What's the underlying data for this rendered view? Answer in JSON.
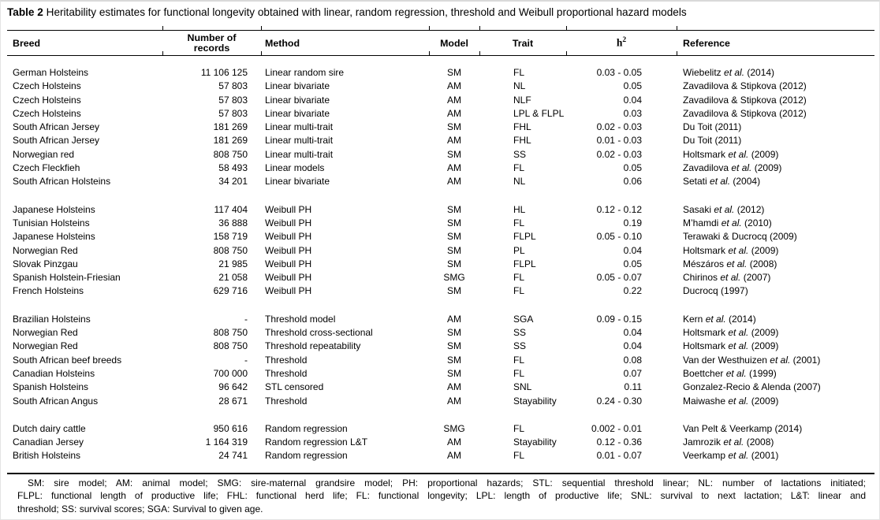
{
  "title": {
    "bold": "Table 2",
    "rest": " Heritability estimates for functional longevity obtained with linear, random regression, threshold and Weibull proportional hazard models"
  },
  "table": {
    "headers": {
      "breed": "Breed",
      "records_line1": "Number of",
      "records_line2": "records",
      "method": "Method",
      "model": "Model",
      "trait": "Trait",
      "h2_base": "h",
      "h2_sup": "2",
      "reference": "Reference"
    },
    "groups": [
      {
        "rows": [
          {
            "breed": "German Holsteins",
            "records": "11 106 125",
            "method": "Linear random sire",
            "model": "SM",
            "trait": "FL",
            "h2": "0.03 - 0.05",
            "reference": [
              "Wiebelitz ",
              "et al.",
              " (2014)"
            ]
          },
          {
            "breed": "Czech Holsteins",
            "records": "57 803",
            "method": "Linear bivariate",
            "model": "AM",
            "trait": "NL",
            "h2": "0.05",
            "reference": [
              "Zavadilova & Stipkova (2012)"
            ]
          },
          {
            "breed": "Czech Holsteins",
            "records": "57 803",
            "method": "Linear bivariate",
            "model": "AM",
            "trait": "NLF",
            "h2": "0.04",
            "reference": [
              "Zavadilova & Stipkova (2012)"
            ]
          },
          {
            "breed": "Czech Holsteins",
            "records": "57 803",
            "method": "Linear bivariate",
            "model": "AM",
            "trait": "LPL & FLPL",
            "h2": "0.03",
            "reference": [
              "Zavadilova & Stipkova (2012)"
            ]
          },
          {
            "breed": "South African Jersey",
            "records": "181 269",
            "method": "Linear multi-trait",
            "model": "SM",
            "trait": "FHL",
            "h2": "0.02 - 0.03",
            "reference": [
              "Du Toit (2011)"
            ]
          },
          {
            "breed": "South African Jersey",
            "records": "181 269",
            "method": "Linear multi-trait",
            "model": "AM",
            "trait": "FHL",
            "h2": "0.01 - 0.03",
            "reference": [
              "Du Toit (2011)"
            ]
          },
          {
            "breed": "Norwegian red",
            "records": "808 750",
            "method": "Linear multi-trait",
            "model": "SM",
            "trait": "SS",
            "h2": "0.02 - 0.03",
            "reference": [
              "Holtsmark ",
              "et al.",
              " (2009)"
            ]
          },
          {
            "breed": "Czech Fleckfieh",
            "records": "58 493",
            "method": "Linear models",
            "model": "AM",
            "trait": "FL",
            "h2": "0.05",
            "reference": [
              "Zavadilova ",
              "et al.",
              " (2009)"
            ]
          },
          {
            "breed": "South African Holsteins",
            "records": "34 201",
            "method": "Linear bivariate",
            "model": "AM",
            "trait": "NL",
            "h2": "0.06",
            "reference": [
              "Setati ",
              "et al.",
              " (2004)"
            ]
          }
        ]
      },
      {
        "rows": [
          {
            "breed": "Japanese Holsteins",
            "records": "117 404",
            "method": "Weibull PH",
            "model": "SM",
            "trait": "HL",
            "h2": "0.12 - 0.12",
            "reference": [
              "Sasaki ",
              "et al.",
              " (2012)"
            ]
          },
          {
            "breed": "Tunisian Holsteins",
            "records": "36 888",
            "method": "Weibull PH",
            "model": "SM",
            "trait": "FL",
            "h2": "0.19",
            "reference": [
              "M’hamdi ",
              "et al.",
              " (2010)"
            ]
          },
          {
            "breed": "Japanese Holsteins",
            "records": "158 719",
            "method": "Weibull PH",
            "model": "SM",
            "trait": "FLPL",
            "h2": "0.05 - 0.10",
            "reference": [
              "Terawaki & Ducrocq (2009)"
            ]
          },
          {
            "breed": "Norwegian Red",
            "records": "808 750",
            "method": "Weibull PH",
            "model": "SM",
            "trait": "PL",
            "h2": "0.04",
            "reference": [
              "Holtsmark ",
              "et al.",
              " (2009)"
            ]
          },
          {
            "breed": "Slovak Pinzgau",
            "records": "21 985",
            "method": "Weibull PH",
            "model": "SM",
            "trait": "FLPL",
            "h2": "0.05",
            "reference": [
              "Mészáros ",
              "et al.",
              " (2008)"
            ]
          },
          {
            "breed": "Spanish Holstein-Friesian",
            "records": "21 058",
            "method": "Weibull PH",
            "model": "SMG",
            "trait": "FL",
            "h2": "0.05 - 0.07",
            "reference": [
              "Chirinos ",
              "et al.",
              " (2007)"
            ]
          },
          {
            "breed": "French Holsteins",
            "records": "629 716",
            "method": "Weibull PH",
            "model": "SM",
            "trait": "FL",
            "h2": "0.22",
            "reference": [
              "Ducrocq (1997)"
            ]
          }
        ]
      },
      {
        "rows": [
          {
            "breed": "Brazilian Holsteins",
            "records": "-",
            "method": "Threshold model",
            "model": "AM",
            "trait": "SGA",
            "h2": "0.09 - 0.15",
            "reference": [
              "Kern ",
              "et al.",
              " (2014)"
            ]
          },
          {
            "breed": "Norwegian Red",
            "records": "808 750",
            "method": "Threshold cross-sectional",
            "model": "SM",
            "trait": "SS",
            "h2": "0.04",
            "reference": [
              "Holtsmark ",
              "et al.",
              " (2009)"
            ]
          },
          {
            "breed": "Norwegian Red",
            "records": "808 750",
            "method": "Threshold repeatability",
            "model": "SM",
            "trait": "SS",
            "h2": "0.04",
            "reference": [
              "Holtsmark ",
              "et al.",
              " (2009)"
            ]
          },
          {
            "breed": "South African beef breeds",
            "records": "-",
            "method": "Threshold",
            "model": "SM",
            "trait": "FL",
            "h2": "0.08",
            "reference": [
              "Van der Westhuizen ",
              "et al.",
              " (2001)"
            ]
          },
          {
            "breed": "Canadian Holsteins",
            "records": "700 000",
            "method": "Threshold",
            "model": "SM",
            "trait": "FL",
            "h2": "0.07",
            "reference": [
              "Boettcher ",
              "et al.",
              " (1999)"
            ]
          },
          {
            "breed": "Spanish Holsteins",
            "records": "96 642",
            "method": "STL censored",
            "model": "AM",
            "trait": "SNL",
            "h2": "0.11",
            "reference": [
              "Gonzalez-Recio & Alenda (2007)"
            ]
          },
          {
            "breed": "South African Angus",
            "records": "28 671",
            "method": "Threshold",
            "model": "AM",
            "trait": "Stayability",
            "h2": "0.24 - 0.30",
            "reference": [
              "Maiwashe ",
              "et al.",
              " (2009)"
            ]
          }
        ]
      },
      {
        "rows": [
          {
            "breed": "Dutch dairy cattle",
            "records": "950 616",
            "method": "Random regression",
            "model": "SMG",
            "trait": "FL",
            "h2": "0.002 - 0.01",
            "reference": [
              "Van Pelt & Veerkamp (2014)"
            ]
          },
          {
            "breed": "Canadian Jersey",
            "records": "1 164 319",
            "method": "Random regression L&T",
            "model": "AM",
            "trait": "Stayability",
            "h2": "0.12 - 0.36",
            "reference": [
              "Jamrozik ",
              "et al.",
              " (2008)"
            ]
          },
          {
            "breed": "British Holsteins",
            "records": "24 741",
            "method": "Random regression",
            "model": "AM",
            "trait": "FL",
            "h2": "0.01 - 0.07",
            "reference": [
              "Veerkamp ",
              "et al.",
              " (2001)"
            ]
          }
        ]
      }
    ]
  },
  "footnote": {
    "line1": "SM: sire model; AM: animal model; SMG: sire-maternal grandsire model; PH: proportional hazards; STL: sequential threshold linear; NL: number of lactations initiated;",
    "line2": "FLPL: functional length of productive life; FHL: functional herd life; FL: functional longevity; LPL: length of productive life; SNL: survival to next lactation; L&T: linear and",
    "line3": "threshold; SS: survival scores; SGA: Survival to given age."
  }
}
